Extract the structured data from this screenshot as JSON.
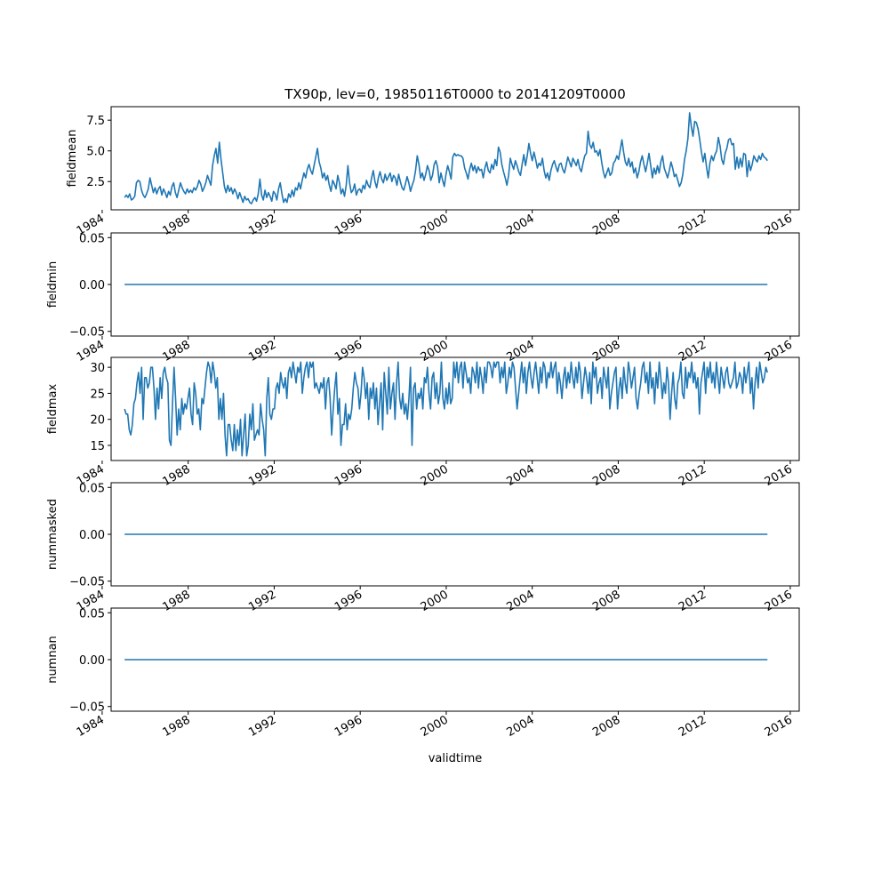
{
  "title": "TX90p, lev=0, 19850116T0000 to 20141209T0000",
  "xlabel": "validtime",
  "x_ticks": [
    "1984",
    "1988",
    "1992",
    "1996",
    "2000",
    "2004",
    "2008",
    "2012",
    "2016"
  ],
  "colors": {
    "line": "#1f77b4",
    "axes": "#000000"
  },
  "chart_data": [
    {
      "type": "line",
      "ylabel": "fieldmean",
      "xlim": [
        "1984-06-01",
        "2016-06-01"
      ],
      "ylim": [
        0.2,
        8.6
      ],
      "yticks": [
        2.5,
        5.0,
        7.5
      ],
      "ytick_labels": [
        "2.5",
        "5.0",
        "7.5"
      ],
      "x_start": "1985-01-16",
      "x_end": "2014-12-09",
      "series": [
        {
          "values": [
            1.2,
            1.4,
            1.2,
            1.5,
            1.0,
            1.1,
            1.3,
            2.4,
            2.6,
            2.5,
            1.8,
            1.4,
            1.2,
            1.5,
            1.9,
            2.8,
            2.2,
            1.6,
            2.0,
            1.5,
            1.9,
            2.1,
            1.4,
            1.9,
            1.6,
            1.2,
            1.7,
            1.4,
            2.1,
            2.4,
            1.6,
            1.2,
            1.8,
            2.4,
            2.0,
            1.7,
            1.5,
            1.9,
            1.6,
            1.8,
            1.6,
            2.0,
            1.8,
            2.1,
            2.6,
            2.3,
            1.7,
            2.0,
            2.4,
            3.0,
            2.6,
            2.2,
            3.8,
            4.6,
            5.2,
            4.0,
            5.7,
            4.3,
            3.2,
            2.1,
            1.6,
            2.2,
            1.7,
            2.0,
            1.5,
            1.9,
            1.6,
            1.1,
            1.6,
            1.2,
            0.8,
            1.3,
            1.0,
            1.1,
            0.8,
            0.7,
            1.0,
            1.2,
            0.9,
            1.5,
            2.7,
            1.4,
            1.0,
            1.8,
            1.2,
            1.6,
            1.3,
            0.9,
            1.7,
            1.5,
            1.0,
            1.9,
            2.4,
            1.5,
            0.8,
            1.1,
            0.8,
            1.5,
            1.2,
            1.8,
            1.3,
            2.0,
            1.8,
            2.4,
            1.9,
            2.6,
            3.2,
            2.8,
            3.5,
            3.9,
            3.4,
            3.1,
            3.8,
            4.5,
            5.2,
            4.1,
            3.6,
            2.8,
            3.2,
            2.6,
            3.0,
            2.2,
            1.7,
            2.6,
            2.3,
            1.9,
            3.0,
            2.4,
            1.5,
            1.9,
            1.3,
            2.2,
            3.8,
            2.4,
            1.6,
            1.8,
            2.3,
            1.4,
            1.8,
            1.9,
            1.6,
            2.2,
            1.9,
            2.6,
            2.2,
            2.0,
            2.8,
            3.4,
            2.5,
            2.0,
            2.8,
            3.3,
            2.7,
            2.4,
            3.1,
            2.6,
            2.9,
            3.2,
            2.5,
            3.0,
            2.8,
            2.2,
            3.1,
            2.5,
            2.0,
            1.8,
            2.3,
            2.9,
            2.4,
            1.7,
            2.2,
            2.6,
            3.4,
            4.6,
            3.9,
            2.8,
            3.2,
            2.6,
            3.1,
            3.8,
            3.4,
            2.6,
            3.0,
            3.9,
            4.2,
            3.7,
            2.4,
            3.2,
            2.6,
            2.1,
            3.1,
            3.8,
            3.3,
            2.7,
            4.5,
            4.8,
            4.6,
            4.7,
            4.6,
            4.6,
            4.4,
            3.6,
            3.2,
            2.7,
            3.5,
            4.0,
            3.4,
            3.8,
            3.2,
            3.7,
            3.4,
            3.5,
            2.8,
            3.6,
            4.1,
            3.4,
            3.2,
            3.9,
            3.5,
            4.3,
            3.8,
            5.3,
            4.9,
            3.9,
            3.3,
            2.8,
            2.2,
            3.0,
            4.4,
            3.9,
            3.5,
            4.2,
            3.8,
            3.3,
            3.0,
            3.9,
            4.7,
            3.8,
            4.6,
            5.6,
            4.8,
            4.2,
            4.9,
            4.3,
            3.6,
            4.0,
            3.8,
            4.4,
            3.4,
            2.8,
            3.2,
            2.6,
            3.4,
            3.9,
            4.2,
            3.7,
            3.3,
            3.9,
            4.0,
            3.5,
            3.2,
            3.8,
            4.5,
            4.1,
            3.7,
            4.4,
            4.1,
            3.8,
            4.3,
            3.6,
            3.3,
            4.0,
            4.6,
            4.8,
            6.6,
            5.5,
            5.2,
            5.7,
            4.9,
            5.0,
            4.6,
            5.1,
            4.1,
            3.3,
            2.8,
            3.2,
            3.6,
            3.0,
            3.2,
            4.0,
            4.2,
            4.6,
            4.3,
            5.1,
            5.9,
            4.9,
            4.1,
            3.8,
            4.4,
            3.7,
            4.1,
            3.2,
            3.6,
            2.8,
            3.3,
            4.1,
            4.6,
            3.9,
            3.3,
            4.0,
            4.8,
            3.8,
            2.8,
            3.6,
            3.1,
            3.8,
            3.2,
            4.1,
            4.6,
            3.6,
            3.2,
            2.8,
            3.4,
            4.1,
            3.6,
            2.9,
            3.1,
            2.6,
            2.1,
            2.4,
            3.1,
            4.3,
            5.0,
            6.0,
            8.1,
            7.0,
            6.2,
            7.4,
            7.3,
            6.8,
            5.9,
            4.9,
            4.1,
            4.8,
            3.7,
            2.8,
            4.0,
            4.6,
            4.2,
            4.7,
            5.0,
            6.1,
            5.4,
            4.3,
            3.9,
            4.8,
            5.2,
            5.9,
            6.0,
            5.5,
            5.6,
            3.5,
            4.5,
            3.6,
            4.4,
            3.7,
            4.8,
            4.7,
            2.9,
            4.2,
            3.4,
            3.9,
            4.6,
            4.3,
            4.1,
            4.6,
            4.3,
            4.8,
            4.5,
            4.4,
            4.2
          ]
        }
      ]
    },
    {
      "type": "line",
      "ylabel": "fieldmin",
      "xlim": [
        "1984-06-01",
        "2016-06-01"
      ],
      "ylim": [
        -0.055,
        0.055
      ],
      "yticks": [
        -0.05,
        0.0,
        0.05
      ],
      "ytick_labels": [
        "−0.05",
        "0.00",
        "0.05"
      ],
      "x_start": "1985-01-16",
      "x_end": "2014-12-09",
      "series": [
        {
          "values": [
            0,
            0
          ]
        }
      ]
    },
    {
      "type": "line",
      "ylabel": "fieldmax",
      "xlim": [
        "1984-06-01",
        "2016-06-01"
      ],
      "ylim": [
        12.1,
        31.9
      ],
      "yticks": [
        15,
        20,
        25,
        30
      ],
      "ytick_labels": [
        "15",
        "20",
        "25",
        "30"
      ],
      "x_start": "1985-01-16",
      "x_end": "2014-12-09",
      "series": [
        {
          "values": [
            22,
            21,
            21,
            18,
            17,
            19,
            23,
            24,
            27,
            29,
            25,
            30,
            20,
            28,
            28,
            26,
            27,
            30,
            30,
            26,
            20,
            26,
            22,
            28,
            24,
            29,
            30,
            28,
            27,
            16,
            15,
            23,
            30,
            24,
            17,
            22,
            18,
            24,
            21,
            23,
            22,
            24,
            26,
            21,
            19,
            27,
            25,
            21,
            22,
            18,
            24,
            23,
            26,
            29,
            31,
            30,
            27,
            31,
            29,
            26,
            28,
            20,
            24,
            20,
            25,
            17,
            13,
            19,
            19,
            16,
            14,
            19,
            14,
            18,
            15,
            20,
            13,
            17,
            21,
            13,
            15,
            21,
            18,
            23,
            16,
            17,
            18,
            17,
            23,
            20,
            18,
            13,
            24,
            28,
            21,
            20,
            22,
            22,
            26,
            27,
            25,
            29,
            27,
            26,
            28,
            24,
            29,
            30,
            28,
            31,
            29,
            27,
            30,
            29,
            31,
            25,
            28,
            30,
            31,
            28,
            31,
            30,
            31,
            26,
            27,
            26,
            25,
            27,
            26,
            28,
            22,
            27,
            28,
            24,
            17,
            22,
            26,
            29,
            21,
            24,
            15,
            19,
            19,
            23,
            18,
            21,
            20,
            22,
            26,
            29,
            27,
            26,
            22,
            25,
            30,
            28,
            24,
            27,
            20,
            26,
            24,
            27,
            22,
            26,
            19,
            23,
            27,
            18,
            29,
            25,
            21,
            30,
            22,
            25,
            27,
            20,
            27,
            31,
            24,
            22,
            25,
            21,
            23,
            20,
            24,
            30,
            15,
            26,
            27,
            22,
            25,
            24,
            26,
            22,
            28,
            27,
            30,
            25,
            22,
            28,
            29,
            24,
            27,
            23,
            25,
            31,
            24,
            22,
            26,
            23,
            27,
            23,
            24,
            31,
            28,
            31,
            27,
            30,
            31,
            26,
            31,
            29,
            27,
            28,
            25,
            30,
            29,
            27,
            31,
            26,
            30,
            28,
            25,
            30,
            27,
            31,
            31,
            30,
            28,
            31,
            30,
            31,
            31,
            27,
            30,
            28,
            31,
            25,
            27,
            30,
            28,
            31,
            30,
            26,
            22,
            25,
            28,
            31,
            27,
            30,
            25,
            29,
            31,
            28,
            26,
            29,
            31,
            28,
            25,
            30,
            27,
            31,
            30,
            26,
            29,
            28,
            31,
            28,
            30,
            31,
            25,
            29,
            27,
            24,
            28,
            30,
            26,
            29,
            27,
            31,
            28,
            26,
            30,
            27,
            31,
            29,
            24,
            27,
            30,
            28,
            25,
            29,
            23,
            31,
            28,
            30,
            25,
            27,
            28,
            24,
            30,
            28,
            26,
            30,
            22,
            25,
            27,
            29,
            30,
            22,
            26,
            28,
            24,
            30,
            27,
            25,
            31,
            29,
            26,
            28,
            30,
            24,
            22,
            25,
            27,
            30,
            31,
            27,
            29,
            25,
            31,
            26,
            28,
            23,
            29,
            26,
            31,
            28,
            24,
            27,
            25,
            30,
            27,
            20,
            25,
            29,
            24,
            22,
            27,
            28,
            31,
            25,
            24,
            30,
            26,
            29,
            28,
            31,
            27,
            29,
            26,
            28,
            21,
            27,
            29,
            31,
            25,
            30,
            28,
            31,
            27,
            29,
            26,
            31,
            28,
            25,
            30,
            28,
            26,
            29,
            30,
            27,
            26,
            27,
            28,
            31,
            26,
            27,
            29,
            28,
            25,
            30,
            27,
            29,
            31,
            25,
            28,
            22,
            27,
            30,
            26,
            31,
            29,
            27,
            28,
            30,
            29
          ]
        }
      ]
    },
    {
      "type": "line",
      "ylabel": "nummasked",
      "xlim": [
        "1984-06-01",
        "2016-06-01"
      ],
      "ylim": [
        -0.055,
        0.055
      ],
      "yticks": [
        -0.05,
        0.0,
        0.05
      ],
      "ytick_labels": [
        "−0.05",
        "0.00",
        "0.05"
      ],
      "x_start": "1985-01-16",
      "x_end": "2014-12-09",
      "series": [
        {
          "values": [
            0,
            0
          ]
        }
      ]
    },
    {
      "type": "line",
      "ylabel": "numnan",
      "xlim": [
        "1984-06-01",
        "2016-06-01"
      ],
      "ylim": [
        -0.055,
        0.055
      ],
      "yticks": [
        -0.05,
        0.0,
        0.05
      ],
      "ytick_labels": [
        "−0.05",
        "0.00",
        "0.05"
      ],
      "x_start": "1985-01-16",
      "x_end": "2014-12-09",
      "series": [
        {
          "values": [
            0,
            0
          ]
        }
      ]
    }
  ]
}
